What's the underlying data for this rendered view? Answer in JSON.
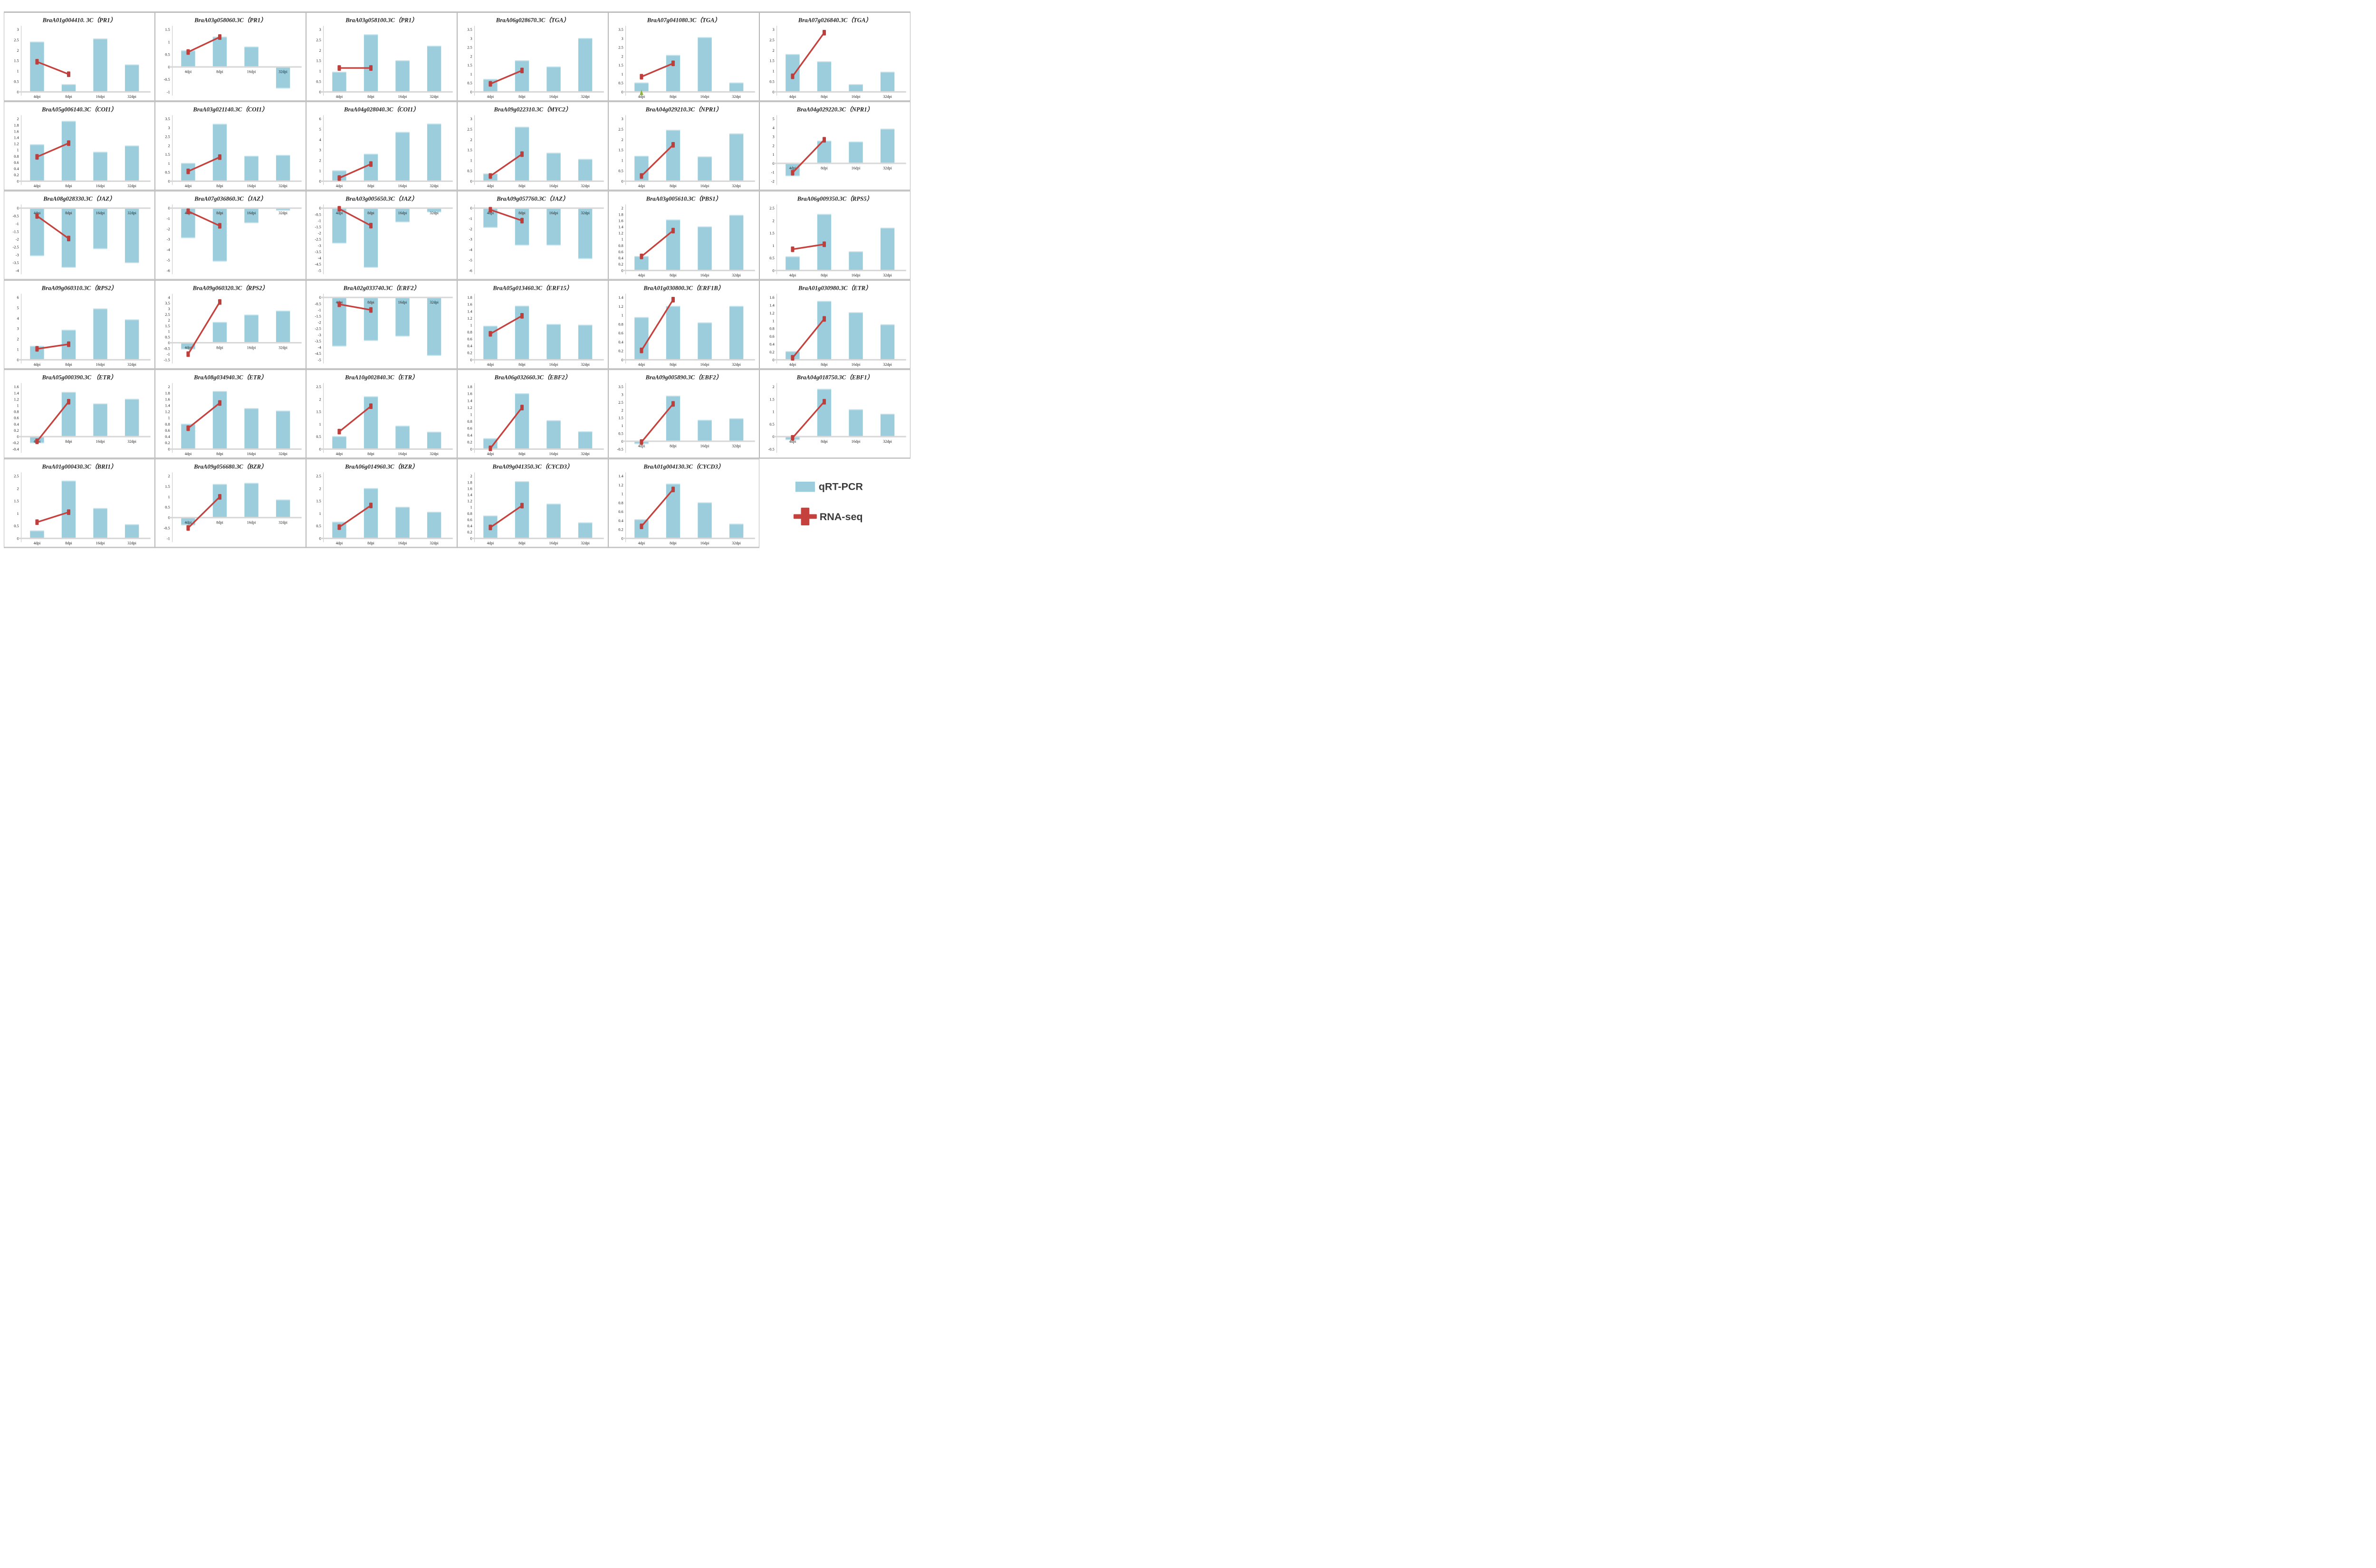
{
  "figure_title": "qRT-PCR vs RNA-seq expression validation grid",
  "x_categories": [
    "4dpi",
    "8dpi",
    "16dpi",
    "32dpi"
  ],
  "legend": {
    "items": [
      {
        "label": "qRT-PCR",
        "swatch": "blue-rect",
        "color": "#9bcddc"
      },
      {
        "label": "RNA-seq",
        "swatch": "red-cross",
        "color": "#c5413d"
      }
    ]
  },
  "colors": {
    "bar": "#9bcddc",
    "bar_cap": "#c6e3ec",
    "line": "#c5413d",
    "marker": "#be3e3b",
    "green_marker": "#8cb53c",
    "zero_line": "#d8d8d8",
    "axis_line": "#c2c2c2",
    "text": "#1f1f1f",
    "legend_text": "#3a3a3a"
  },
  "chart_data": [
    {
      "type": "bar+line",
      "title": "BraA01g004410. 3C（PR1）",
      "y_min": 0,
      "y_max": 3,
      "y_step": 0.5,
      "series": [
        {
          "name": "qRT-PCR",
          "values": [
            2.4,
            0.35,
            2.55,
            1.3
          ]
        },
        {
          "name": "RNA-seq",
          "values": [
            1.45,
            0.85
          ]
        }
      ]
    },
    {
      "type": "bar+line",
      "title": "BraA03g058060.3C（PR1）",
      "y_min": -1,
      "y_max": 1.5,
      "y_step": 0.5,
      "series": [
        {
          "name": "qRT-PCR",
          "values": [
            0.65,
            1.2,
            0.8,
            -0.85
          ]
        },
        {
          "name": "RNA-seq",
          "values": [
            0.6,
            1.2
          ]
        }
      ]
    },
    {
      "type": "bar+line",
      "title": "BraA03g058100.3C（PR1）",
      "y_min": 0,
      "y_max": 3,
      "y_step": 0.5,
      "series": [
        {
          "name": "qRT-PCR",
          "values": [
            0.95,
            2.75,
            1.5,
            2.2
          ]
        },
        {
          "name": "RNA-seq",
          "values": [
            1.15,
            1.15
          ]
        }
      ]
    },
    {
      "type": "bar+line",
      "title": "BraA06g028670.3C（TGA）",
      "y_min": 0,
      "y_max": 3.5,
      "y_step": 0.5,
      "series": [
        {
          "name": "qRT-PCR",
          "values": [
            0.7,
            1.75,
            1.4,
            3.0
          ]
        },
        {
          "name": "RNA-seq",
          "values": [
            0.45,
            1.2
          ]
        }
      ]
    },
    {
      "type": "bar+line",
      "title": "BraA07g041080.3C（TGA）",
      "y_min": 0,
      "y_max": 3.5,
      "y_step": 0.5,
      "series": [
        {
          "name": "qRT-PCR",
          "values": [
            0.5,
            2.05,
            3.05,
            0.5
          ]
        },
        {
          "name": "RNA-seq",
          "values": [
            0.85,
            1.6
          ]
        }
      ],
      "annotation": {
        "shape": "green-triangle",
        "category": "4dpi",
        "value": 0.05
      }
    },
    {
      "type": "bar+line",
      "title": "BraA07g026840.3C（TGA）",
      "y_min": 0,
      "y_max": 3,
      "y_step": 0.5,
      "series": [
        {
          "name": "qRT-PCR",
          "values": [
            1.8,
            1.45,
            0.35,
            0.95
          ]
        },
        {
          "name": "RNA-seq",
          "values": [
            0.75,
            2.85
          ]
        }
      ]
    },
    {
      "type": "bar+line",
      "title": "BraA05g006140.3C（COI1）",
      "y_min": 0,
      "y_max": 2,
      "y_step": 0.2,
      "series": [
        {
          "name": "qRT-PCR",
          "values": [
            1.17,
            1.92,
            0.93,
            1.13
          ]
        },
        {
          "name": "RNA-seq",
          "values": [
            0.78,
            1.22
          ]
        }
      ]
    },
    {
      "type": "bar+line",
      "title": "BraA03g021140.3C（COI1）",
      "y_min": 0,
      "y_max": 3.5,
      "y_step": 0.5,
      "series": [
        {
          "name": "qRT-PCR",
          "values": [
            1.0,
            3.2,
            1.4,
            1.45
          ]
        },
        {
          "name": "RNA-seq",
          "values": [
            0.55,
            1.35
          ]
        }
      ]
    },
    {
      "type": "bar+line",
      "title": "BraA04g028040.3C（COI1）",
      "y_min": 0,
      "y_max": 6,
      "y_step": 1,
      "series": [
        {
          "name": "qRT-PCR",
          "values": [
            1.0,
            2.6,
            4.7,
            5.5
          ]
        },
        {
          "name": "RNA-seq",
          "values": [
            0.3,
            1.65
          ]
        }
      ]
    },
    {
      "type": "bar+line",
      "title": "BraA09g022310.3C（MYC2）",
      "y_min": 0,
      "y_max": 3,
      "y_step": 0.5,
      "series": [
        {
          "name": "qRT-PCR",
          "values": [
            0.35,
            2.6,
            1.35,
            1.05
          ]
        },
        {
          "name": "RNA-seq",
          "values": [
            0.25,
            1.3
          ]
        }
      ]
    },
    {
      "type": "bar+line",
      "title": "BraA04g029210.3C（NPR1）",
      "y_min": 0,
      "y_max": 3,
      "y_step": 0.5,
      "series": [
        {
          "name": "qRT-PCR",
          "values": [
            1.2,
            2.45,
            1.17,
            2.28
          ]
        },
        {
          "name": "RNA-seq",
          "values": [
            0.25,
            1.75
          ]
        }
      ]
    },
    {
      "type": "bar+line",
      "title": "BraA04g029220.3C（NPR1）",
      "y_min": -2,
      "y_max": 5,
      "y_step": 1,
      "series": [
        {
          "name": "qRT-PCR",
          "values": [
            -1.4,
            2.5,
            2.4,
            3.85
          ]
        },
        {
          "name": "RNA-seq",
          "values": [
            -1.05,
            2.65
          ]
        }
      ]
    },
    {
      "type": "bar+line",
      "title": "BraA08g028330.3C（JAZ）",
      "y_min": -4,
      "y_max": 0,
      "y_step": 0.5,
      "series": [
        {
          "name": "qRT-PCR",
          "values": [
            -3.05,
            -3.8,
            -2.6,
            -3.5
          ]
        },
        {
          "name": "RNA-seq",
          "values": [
            -0.5,
            -1.95
          ]
        }
      ]
    },
    {
      "type": "bar+line",
      "title": "BraA07g036860.3C（JAZ）",
      "y_min": -6,
      "y_max": 0,
      "y_step": 1,
      "series": [
        {
          "name": "qRT-PCR",
          "values": [
            -2.85,
            -5.1,
            -1.4,
            -0.2
          ]
        },
        {
          "name": "RNA-seq",
          "values": [
            -0.3,
            -1.7
          ]
        }
      ]
    },
    {
      "type": "bar+line",
      "title": "BraA03g005650.3C（JAZ）",
      "y_min": -5,
      "y_max": 0,
      "y_step": 0.5,
      "series": [
        {
          "name": "qRT-PCR",
          "values": [
            -2.8,
            -4.75,
            -1.1,
            -0.3
          ]
        },
        {
          "name": "RNA-seq",
          "values": [
            -0.05,
            -1.4
          ]
        }
      ]
    },
    {
      "type": "bar+line",
      "title": "BraA09g057760.3C（JAZ）",
      "y_min": -6,
      "y_max": 0,
      "y_step": 1,
      "series": [
        {
          "name": "qRT-PCR",
          "values": [
            -1.85,
            -3.55,
            -3.55,
            -4.85
          ]
        },
        {
          "name": "RNA-seq",
          "values": [
            -0.15,
            -1.2
          ]
        }
      ]
    },
    {
      "type": "bar+line",
      "title": "BraA03g005610.3C（PBS1）",
      "y_min": 0,
      "y_max": 2,
      "y_step": 0.2,
      "series": [
        {
          "name": "qRT-PCR",
          "values": [
            0.45,
            1.62,
            1.4,
            1.77
          ]
        },
        {
          "name": "RNA-seq",
          "values": [
            0.45,
            1.28
          ]
        }
      ]
    },
    {
      "type": "bar+line",
      "title": "BraA06g009350.3C（RPS5）",
      "y_min": 0,
      "y_max": 2.5,
      "y_step": 0.5,
      "series": [
        {
          "name": "qRT-PCR",
          "values": [
            0.55,
            2.25,
            0.75,
            1.7
          ]
        },
        {
          "name": "RNA-seq",
          "values": [
            0.85,
            1.05
          ]
        }
      ]
    },
    {
      "type": "bar+line",
      "title": "BraA09g060310.3C（RPS2）",
      "y_min": 0,
      "y_max": 6,
      "y_step": 1,
      "series": [
        {
          "name": "qRT-PCR",
          "values": [
            1.3,
            2.85,
            4.9,
            3.85
          ]
        },
        {
          "name": "RNA-seq",
          "values": [
            1.05,
            1.5
          ]
        }
      ]
    },
    {
      "type": "bar+line",
      "title": "BraA09g060320.3C（RPS2）",
      "y_min": -1.5,
      "y_max": 4,
      "y_step": 0.5,
      "series": [
        {
          "name": "qRT-PCR",
          "values": [
            -0.55,
            1.8,
            2.45,
            2.8
          ]
        },
        {
          "name": "RNA-seq",
          "values": [
            -1.0,
            3.6
          ]
        }
      ]
    },
    {
      "type": "bar+line",
      "title": "BraA02g033740.3C（ERF2）",
      "y_min": -5,
      "y_max": 0,
      "y_step": 0.5,
      "series": [
        {
          "name": "qRT-PCR",
          "values": [
            -3.9,
            -3.45,
            -3.1,
            -4.65
          ]
        },
        {
          "name": "RNA-seq",
          "values": [
            -0.55,
            -1.0
          ]
        }
      ]
    },
    {
      "type": "bar+line",
      "title": "BraA05g013460.3C（ERF15）",
      "y_min": 0,
      "y_max": 1.8,
      "y_step": 0.2,
      "series": [
        {
          "name": "qRT-PCR",
          "values": [
            0.97,
            1.55,
            1.02,
            1.0
          ]
        },
        {
          "name": "RNA-seq",
          "values": [
            0.75,
            1.27
          ]
        }
      ]
    },
    {
      "type": "bar+line",
      "title": "BraA01g030800.3C（ERF1B）",
      "y_min": 0,
      "y_max": 1.4,
      "y_step": 0.2,
      "series": [
        {
          "name": "qRT-PCR",
          "values": [
            0.95,
            1.2,
            0.83,
            1.2
          ]
        },
        {
          "name": "RNA-seq",
          "values": [
            0.21,
            1.35
          ]
        }
      ]
    },
    {
      "type": "bar+line",
      "title": "BraA01g030980.3C（ETR）",
      "y_min": 0,
      "y_max": 1.6,
      "y_step": 0.2,
      "series": [
        {
          "name": "qRT-PCR",
          "values": [
            0.21,
            1.5,
            1.21,
            0.9
          ]
        },
        {
          "name": "RNA-seq",
          "values": [
            0.05,
            1.05
          ]
        }
      ]
    },
    {
      "type": "bar+line",
      "title": "BraA05g000390.3C （ETR）",
      "y_min": -0.4,
      "y_max": 1.6,
      "y_step": 0.2,
      "series": [
        {
          "name": "qRT-PCR",
          "values": [
            -0.2,
            1.42,
            1.05,
            1.2
          ]
        },
        {
          "name": "RNA-seq",
          "values": [
            -0.15,
            1.12
          ]
        }
      ]
    },
    {
      "type": "bar+line",
      "title": "BraA08g034940.3C（ETR）",
      "y_min": 0,
      "y_max": 2,
      "y_step": 0.2,
      "series": [
        {
          "name": "qRT-PCR",
          "values": [
            0.8,
            1.85,
            1.3,
            1.22
          ]
        },
        {
          "name": "RNA-seq",
          "values": [
            0.67,
            1.48
          ]
        }
      ]
    },
    {
      "type": "bar+line",
      "title": "BraA10g002840.3C（ETR）",
      "y_min": 0,
      "y_max": 2.5,
      "y_step": 0.5,
      "series": [
        {
          "name": "qRT-PCR",
          "values": [
            0.5,
            2.1,
            0.92,
            0.68
          ]
        },
        {
          "name": "RNA-seq",
          "values": [
            0.7,
            1.72
          ]
        }
      ]
    },
    {
      "type": "bar+line",
      "title": "BraA06g032660.3C（EBF2）",
      "y_min": 0,
      "y_max": 1.8,
      "y_step": 0.2,
      "series": [
        {
          "name": "qRT-PCR",
          "values": [
            0.3,
            1.6,
            0.82,
            0.5
          ]
        },
        {
          "name": "RNA-seq",
          "values": [
            0.02,
            1.2
          ]
        }
      ]
    },
    {
      "type": "bar+line",
      "title": "BraA09g005890.3C（EBF2）",
      "y_min": -0.5,
      "y_max": 3.5,
      "y_step": 0.5,
      "series": [
        {
          "name": "qRT-PCR",
          "values": [
            -0.15,
            2.9,
            1.35,
            1.45
          ]
        },
        {
          "name": "RNA-seq",
          "values": [
            -0.05,
            2.4
          ]
        }
      ]
    },
    {
      "type": "bar+line",
      "title": "BraA04g018750.3C（EBF1）",
      "y_min": -0.5,
      "y_max": 2,
      "y_step": 0.5,
      "series": [
        {
          "name": "qRT-PCR",
          "values": [
            -0.12,
            1.9,
            1.08,
            0.9
          ]
        },
        {
          "name": "RNA-seq",
          "values": [
            -0.05,
            1.4
          ]
        }
      ]
    },
    {
      "type": "bar+line",
      "title": "BraA01g000430.3C（BRI1）",
      "y_min": 0,
      "y_max": 2.5,
      "y_step": 0.5,
      "series": [
        {
          "name": "qRT-PCR",
          "values": [
            0.3,
            2.3,
            1.2,
            0.55
          ]
        },
        {
          "name": "RNA-seq",
          "values": [
            0.65,
            1.05
          ]
        }
      ]
    },
    {
      "type": "bar+line",
      "title": "BraA09g056680.3C（BZR）",
      "y_min": -1,
      "y_max": 2,
      "y_step": 0.5,
      "series": [
        {
          "name": "qRT-PCR",
          "values": [
            -0.35,
            1.6,
            1.65,
            0.85
          ]
        },
        {
          "name": "RNA-seq",
          "values": [
            -0.5,
            1.0
          ]
        }
      ]
    },
    {
      "type": "bar+line",
      "title": "BraA06g014960.3C（BZR）",
      "y_min": 0,
      "y_max": 2.5,
      "y_step": 0.5,
      "series": [
        {
          "name": "qRT-PCR",
          "values": [
            0.65,
            2.0,
            1.25,
            1.05
          ]
        },
        {
          "name": "RNA-seq",
          "values": [
            0.45,
            1.32
          ]
        }
      ]
    },
    {
      "type": "bar+line",
      "title": "BraA09g041350.3C（CYCD3）",
      "y_min": 0,
      "y_max": 2,
      "y_step": 0.2,
      "series": [
        {
          "name": "qRT-PCR",
          "values": [
            0.72,
            1.82,
            1.1,
            0.5
          ]
        },
        {
          "name": "RNA-seq",
          "values": [
            0.35,
            1.05
          ]
        }
      ]
    },
    {
      "type": "bar+line",
      "title": "BraA01g004130.3C（CYCD3）",
      "y_min": 0,
      "y_max": 1.4,
      "y_step": 0.2,
      "series": [
        {
          "name": "qRT-PCR",
          "values": [
            0.42,
            1.22,
            0.8,
            0.32
          ]
        },
        {
          "name": "RNA-seq",
          "values": [
            0.27,
            1.1
          ]
        }
      ]
    }
  ]
}
